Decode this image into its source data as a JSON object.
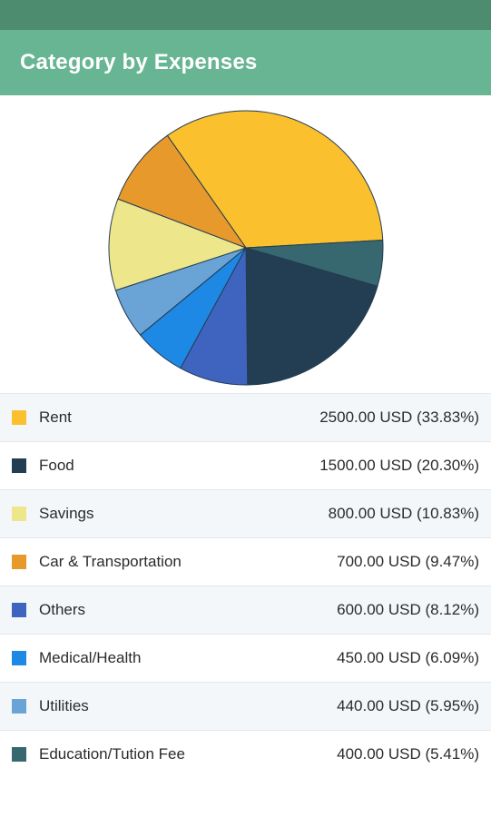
{
  "header": {
    "title": "Category by Expenses"
  },
  "chart_data": {
    "type": "pie",
    "currency": "USD",
    "categories": [
      "Rent",
      "Food",
      "Others",
      "Medical/Health",
      "Utilities",
      "Savings",
      "Car & Transportation",
      "Education/Tution Fee"
    ],
    "values": [
      2500,
      1500,
      600,
      450,
      440,
      800,
      700,
      400
    ],
    "colors": [
      "#fbc02d",
      "#233d52",
      "#3e64bf",
      "#1e88e5",
      "#6aa3d5",
      "#ede68b",
      "#e8992b",
      "#37676f"
    ],
    "pie_order": [
      "Rent",
      "Education/Tution Fee",
      "Food",
      "Others",
      "Medical/Health",
      "Utilities",
      "Savings",
      "Car & Transportation"
    ],
    "title": "",
    "legend_placement": "bottom"
  },
  "legend": [
    {
      "label": "Rent",
      "value_text": "2500.00 USD (33.83%)",
      "color": "#fbc02d"
    },
    {
      "label": "Food",
      "value_text": "1500.00 USD (20.30%)",
      "color": "#233d52"
    },
    {
      "label": "Savings",
      "value_text": "800.00 USD (10.83%)",
      "color": "#ede68b"
    },
    {
      "label": "Car & Transportation",
      "value_text": "700.00 USD (9.47%)",
      "color": "#e8992b"
    },
    {
      "label": "Others",
      "value_text": "600.00 USD (8.12%)",
      "color": "#3e64bf"
    },
    {
      "label": "Medical/Health",
      "value_text": "450.00 USD (6.09%)",
      "color": "#1e88e5"
    },
    {
      "label": "Utilities",
      "value_text": "440.00 USD (5.95%)",
      "color": "#6aa3d5"
    },
    {
      "label": "Education/Tution Fee",
      "value_text": "400.00 USD (5.41%)",
      "color": "#37676f"
    }
  ]
}
